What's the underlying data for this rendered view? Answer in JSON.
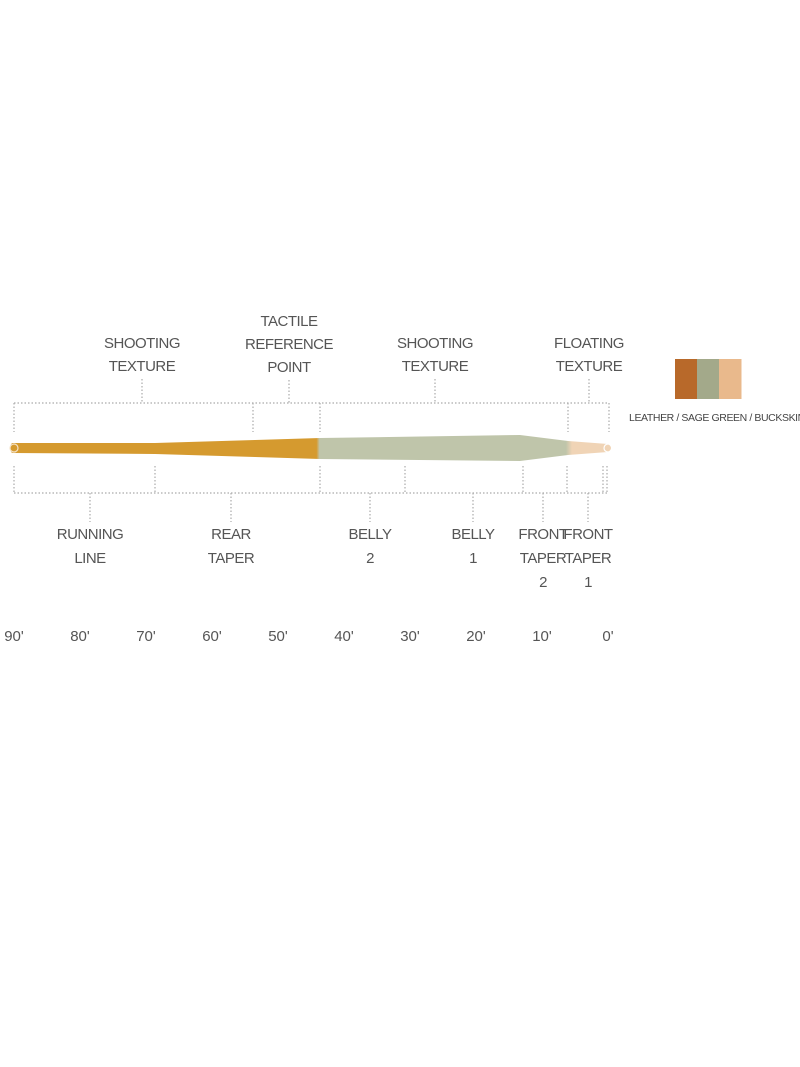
{
  "top_labels": [
    {
      "lines": [
        "SHOOTING",
        "TEXTURE"
      ]
    },
    {
      "lines": [
        "TACTILE",
        "REFERENCE",
        "POINT"
      ]
    },
    {
      "lines": [
        "SHOOTING",
        "TEXTURE"
      ]
    },
    {
      "lines": [
        "FLOATING",
        "TEXTURE"
      ]
    }
  ],
  "bottom_labels": [
    {
      "lines": [
        "RUNNING",
        "LINE"
      ]
    },
    {
      "lines": [
        "REAR",
        "TAPER"
      ]
    },
    {
      "lines": [
        "BELLY",
        "2"
      ]
    },
    {
      "lines": [
        "BELLY",
        "1"
      ]
    },
    {
      "lines": [
        "FRONT",
        "TAPER",
        "2"
      ]
    },
    {
      "lines": [
        "FRONT",
        "TAPER",
        "1"
      ]
    }
  ],
  "axis_ticks": [
    "90'",
    "80'",
    "70'",
    "60'",
    "50'",
    "40'",
    "30'",
    "20'",
    "10'",
    "0'"
  ],
  "legend": {
    "label": "LEATHER / SAGE GREEN / BUCKSKIN",
    "colors": [
      "#B8692A",
      "#A3A98A",
      "#E9B98C"
    ]
  },
  "line_colors": {
    "running": "#D59A2F",
    "belly": "#BFC5AA",
    "tip": "#F0D4B6"
  }
}
